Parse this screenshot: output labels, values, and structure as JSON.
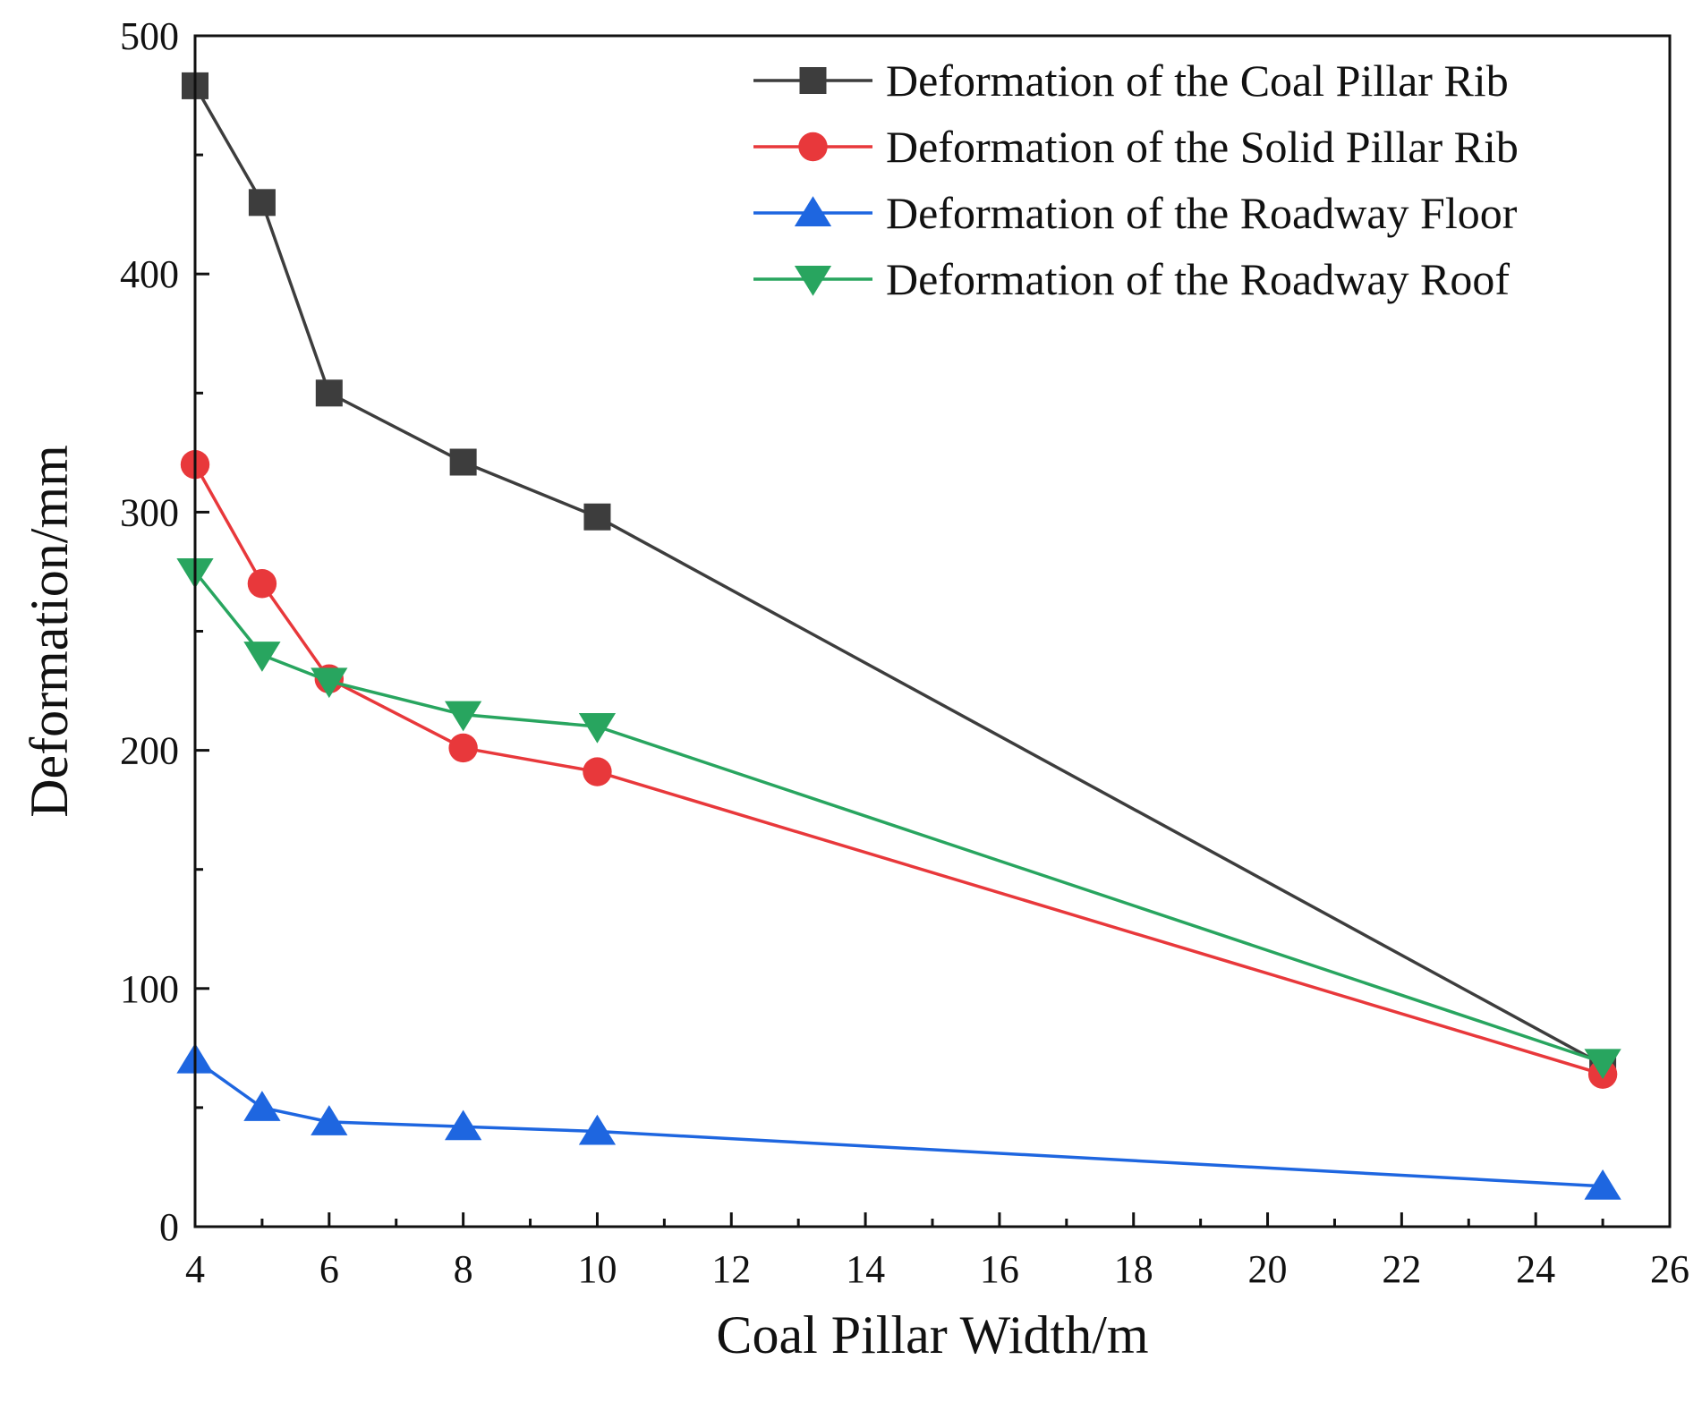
{
  "chart_data": {
    "type": "line",
    "title": "",
    "xlabel": "Coal Pillar Width/m",
    "ylabel": "Deformation/mm",
    "xlim": [
      4,
      26
    ],
    "ylim": [
      0,
      500
    ],
    "x_ticks": [
      4,
      6,
      8,
      10,
      12,
      14,
      16,
      18,
      20,
      22,
      24,
      26
    ],
    "y_ticks": [
      0,
      100,
      200,
      300,
      400,
      500
    ],
    "grid": false,
    "legend_position": "top-right",
    "series": [
      {
        "name": "Deformation of the Coal Pillar Rib",
        "color": "#3d3d3d",
        "marker": "square",
        "x": [
          4,
          5,
          6,
          8,
          10,
          25
        ],
        "y": [
          479,
          430,
          350,
          321,
          298,
          68
        ]
      },
      {
        "name": "Deformation of the Solid Pillar Rib",
        "color": "#e8383b",
        "marker": "circle",
        "x": [
          4,
          5,
          6,
          8,
          10,
          25
        ],
        "y": [
          320,
          270,
          230,
          201,
          191,
          64
        ]
      },
      {
        "name": "Deformation of the Roadway Floor",
        "color": "#1e66e0",
        "marker": "triangle-up",
        "x": [
          4,
          5,
          6,
          8,
          10,
          25
        ],
        "y": [
          70,
          50,
          44,
          42,
          40,
          17
        ]
      },
      {
        "name": "Deformation of the Roadway Roof",
        "color": "#28a55f",
        "marker": "triangle-down",
        "x": [
          4,
          5,
          6,
          8,
          10,
          25
        ],
        "y": [
          275,
          240,
          229,
          215,
          210,
          69
        ]
      }
    ]
  }
}
